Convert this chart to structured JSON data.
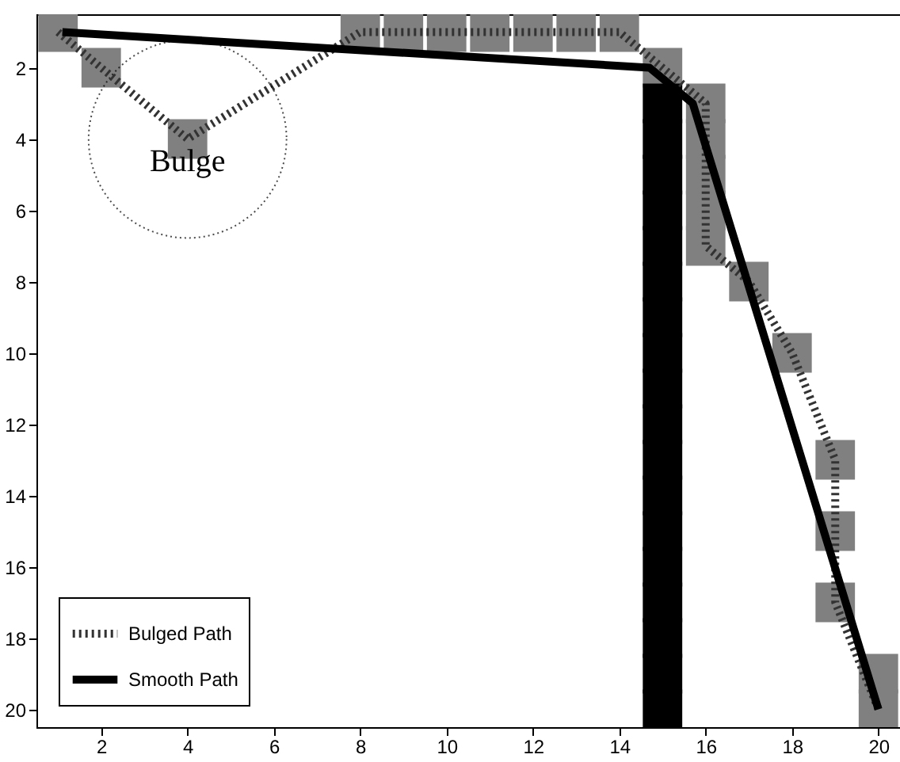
{
  "chart_data": {
    "type": "line",
    "xlim": [
      0.5,
      20.5
    ],
    "ylim": [
      20.5,
      0.5
    ],
    "xticks": [
      2,
      4,
      6,
      8,
      10,
      12,
      14,
      16,
      18,
      20
    ],
    "yticks": [
      2,
      4,
      6,
      8,
      10,
      12,
      14,
      16,
      18,
      20
    ],
    "grid": false,
    "legend": "bottom left",
    "annotations": [
      {
        "text": "Bulge",
        "x": 4,
        "y": 4
      }
    ],
    "series": [
      {
        "type": "scatter",
        "marker": "square",
        "color": "#808080",
        "x": [
          1,
          2,
          4,
          8,
          9,
          10,
          11,
          12,
          13,
          14,
          15,
          16,
          16,
          16,
          16,
          16,
          17,
          18,
          19,
          19,
          19,
          20,
          20
        ],
        "values": [
          1,
          2,
          4,
          1,
          1,
          1,
          1,
          1,
          1,
          1,
          2,
          3,
          4,
          5,
          6,
          7,
          8,
          10,
          13,
          15,
          17,
          19,
          20
        ]
      },
      {
        "type": "scatter",
        "marker": "square",
        "color": "#000000",
        "x": [
          15,
          15,
          15,
          15,
          15,
          15,
          15,
          15,
          15,
          15,
          15,
          15,
          15,
          15,
          15,
          15,
          15,
          15
        ],
        "values": [
          3,
          4,
          5,
          6,
          7,
          8,
          9,
          10,
          11,
          12,
          13,
          14,
          15,
          16,
          17,
          18,
          19,
          20
        ]
      },
      {
        "name": "Bulged Path",
        "line_style": "dotted",
        "color": "#333333",
        "x": [
          1,
          2,
          4,
          8,
          14,
          15,
          16,
          16,
          17,
          18,
          19,
          19,
          19,
          20
        ],
        "values": [
          1,
          2,
          4,
          1,
          1,
          2,
          3,
          7,
          8,
          10,
          13,
          15,
          17,
          20
        ]
      },
      {
        "name": "Smooth Path",
        "line_style": "solid",
        "color": "#000000",
        "x": [
          1.1,
          14.7,
          15.7,
          20
        ],
        "values": [
          1,
          2,
          3,
          20
        ]
      }
    ]
  }
}
